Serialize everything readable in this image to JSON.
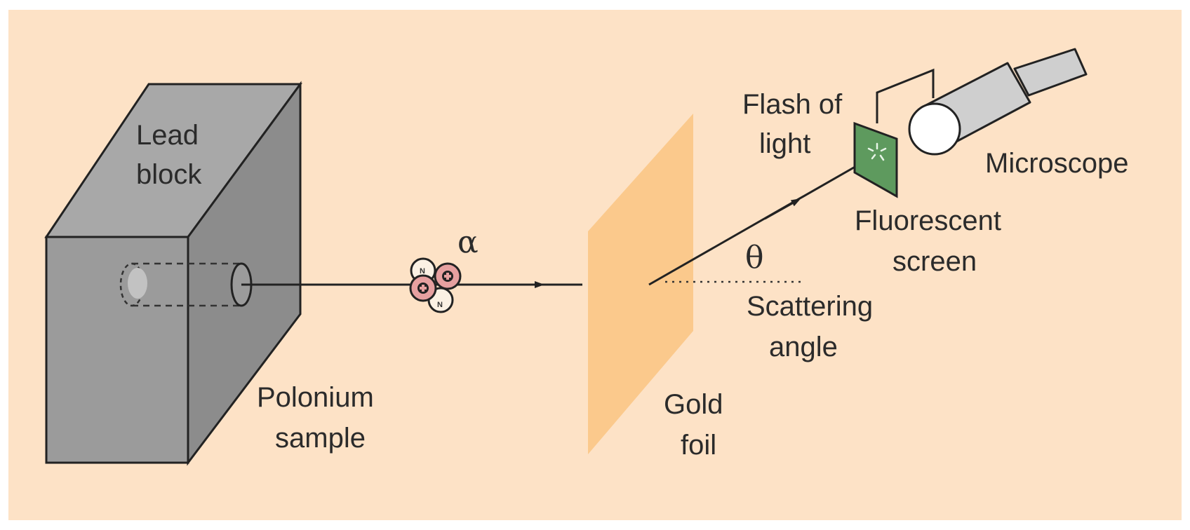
{
  "labels": {
    "lead_block_line1": "Lead",
    "lead_block_line2": "block",
    "polonium_line1": "Polonium",
    "polonium_line2": "sample",
    "alpha": "α",
    "gold_foil_line1": "Gold",
    "gold_foil_line2": "foil",
    "theta": "θ",
    "scattering_line1": "Scattering",
    "scattering_line2": "angle",
    "flash_line1": "Flash of",
    "flash_line2": "light",
    "fluorescent_line1": "Fluorescent",
    "fluorescent_line2": "screen",
    "microscope": "Microscope",
    "neutron_symbol": "N"
  },
  "colors": {
    "background": "#fde2c6",
    "lead_front": "#9b9b9b",
    "lead_top": "#a8a8a8",
    "lead_side": "#8c8c8c",
    "gold_foil": "#fbc98c",
    "proton": "#e6a0a0",
    "neutron": "#fbf1e4",
    "screen": "#5e9a5e",
    "microscope_body": "#cfcfcf",
    "line": "#222222"
  },
  "icons": {
    "proton": "plus-in-circle",
    "neutron": "N-in-circle"
  }
}
